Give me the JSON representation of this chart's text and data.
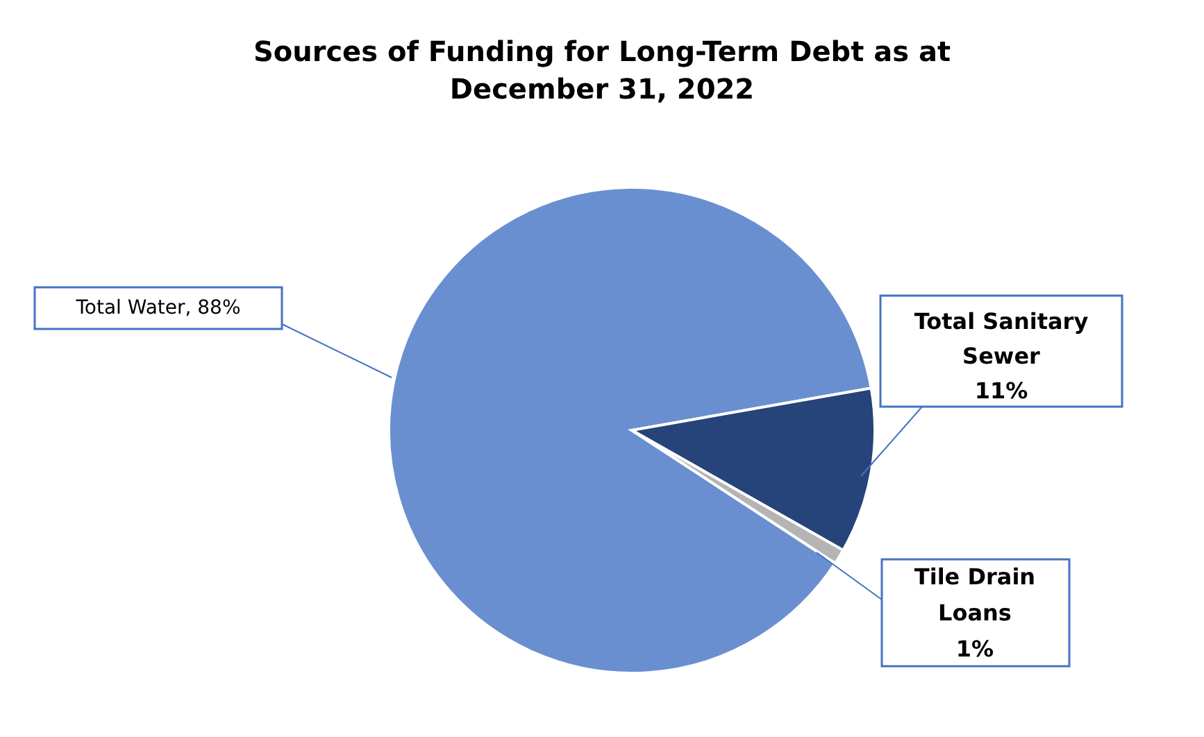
{
  "chart_data": {
    "type": "pie",
    "title": "Sources of Funding for Long-Term Debt as at December 31, 2022",
    "categories": [
      "Total Water",
      "Total Sanitary Sewer",
      "Tile Drain Loans"
    ],
    "values": [
      88,
      11,
      1
    ],
    "colors": [
      "#6a8fd0",
      "#26437a",
      "#b4b4b4"
    ],
    "value_labels": [
      "88%",
      "11%",
      "1%"
    ],
    "legend": false
  }
}
